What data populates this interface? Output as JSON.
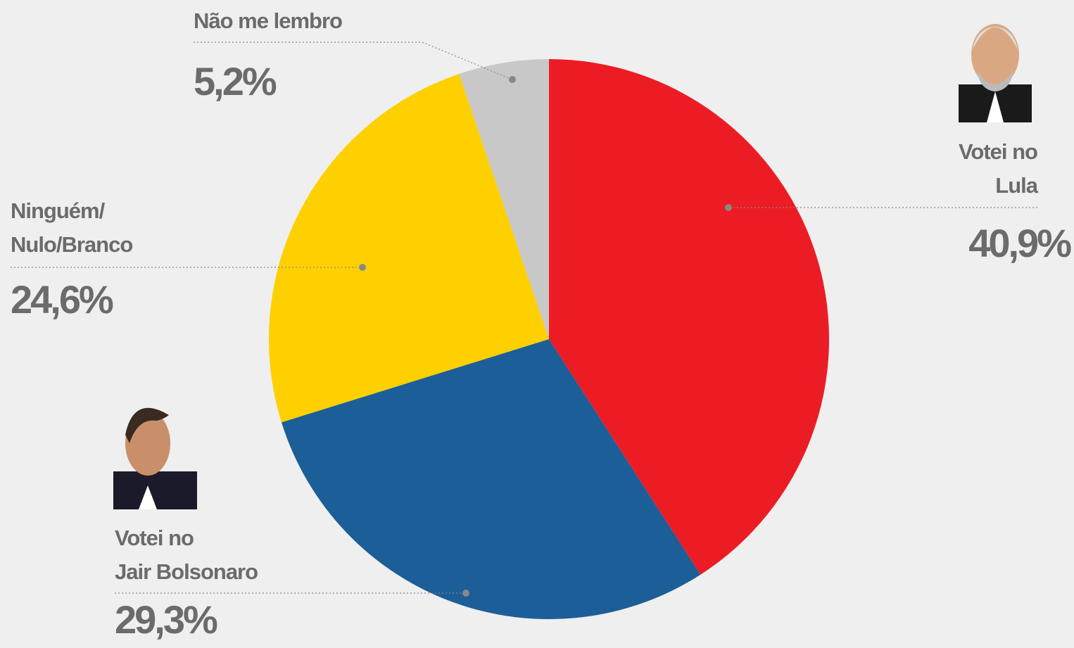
{
  "chart_data": {
    "type": "pie",
    "categories": [
      "Votei no\nLula",
      "Votei no\nJair Bolsonaro",
      "Ninguém/\nNulo/Branco",
      "Não me lembro"
    ],
    "values": [
      40.9,
      29.3,
      24.6,
      5.2
    ],
    "value_labels": [
      "40,9%",
      "29,3%",
      "24,6%",
      "5,2%"
    ],
    "colors": [
      "#ec1c24",
      "#1c5e97",
      "#ffd000",
      "#c8c8c8"
    ]
  }
}
